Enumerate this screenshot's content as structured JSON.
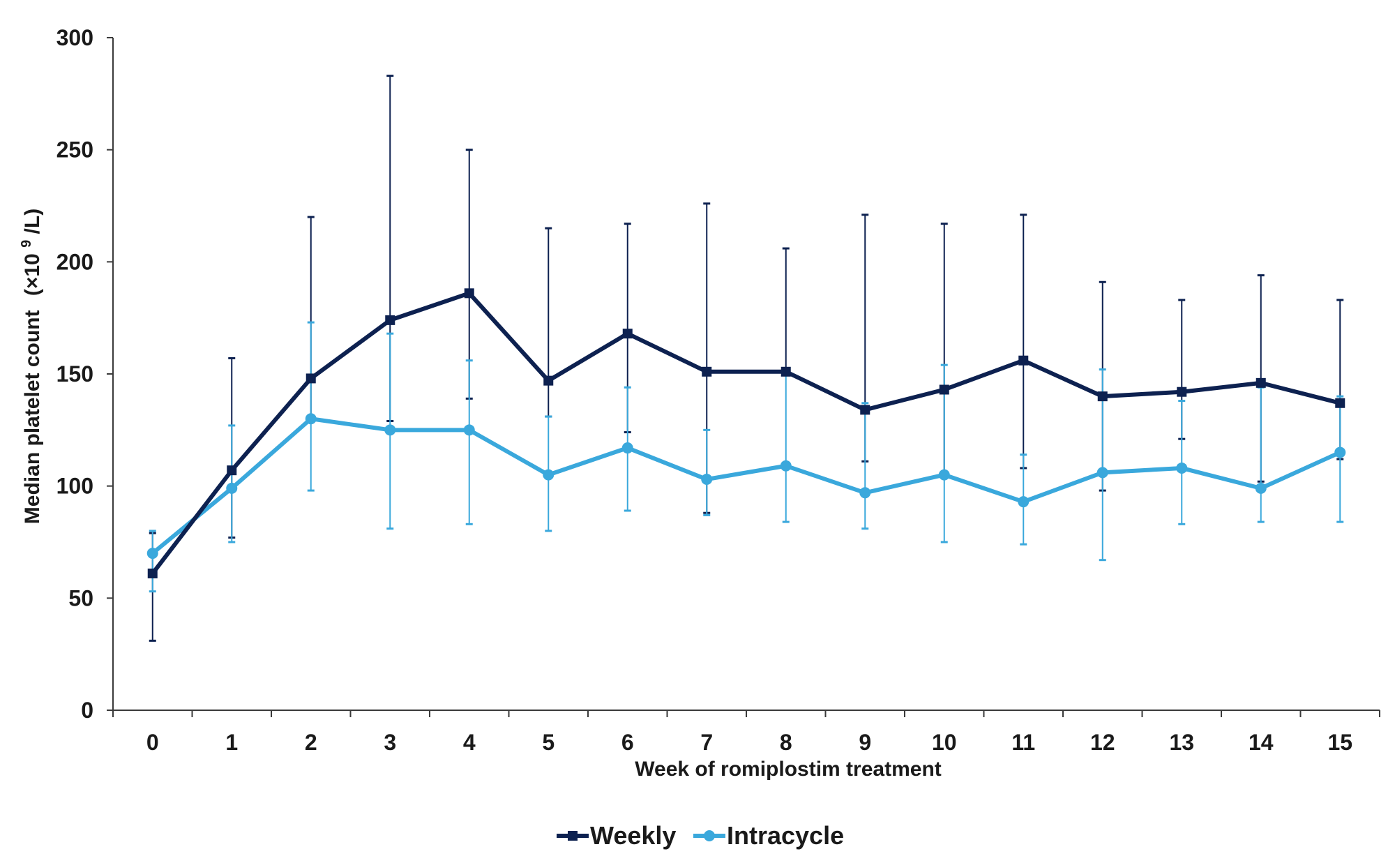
{
  "chart_data": {
    "type": "line",
    "title": "",
    "xlabel": "Week of romiplostim treatment",
    "ylabel": "Median platelet count",
    "ylabel_unit_prefix": "(×10",
    "ylabel_unit_exp": "9",
    "ylabel_unit_suffix": "/L)",
    "x": [
      0,
      1,
      2,
      3,
      4,
      5,
      6,
      7,
      8,
      9,
      10,
      11,
      12,
      13,
      14,
      15
    ],
    "xlim": [
      -0.5,
      15.5
    ],
    "ylim": [
      0,
      300
    ],
    "yticks": [
      0,
      50,
      100,
      150,
      200,
      250,
      300
    ],
    "grid": false,
    "legend_position": "bottom-center",
    "series": [
      {
        "name": "Weekly",
        "color": "#0d2150",
        "marker": "square",
        "values": [
          61,
          107,
          148,
          174,
          186,
          147,
          168,
          151,
          151,
          134,
          143,
          156,
          140,
          142,
          146,
          137
        ],
        "err_low": [
          31,
          77,
          130,
          129,
          139,
          131,
          124,
          88,
          150,
          111,
          105,
          108,
          98,
          121,
          102,
          112
        ],
        "err_high": [
          79,
          157,
          220,
          283,
          250,
          215,
          217,
          226,
          206,
          221,
          217,
          221,
          191,
          183,
          194,
          183
        ]
      },
      {
        "name": "Intracycle",
        "color": "#3aa8dc",
        "marker": "circle",
        "values": [
          70,
          99,
          130,
          125,
          125,
          105,
          117,
          103,
          109,
          97,
          105,
          93,
          106,
          108,
          99,
          115
        ],
        "err_low": [
          53,
          75,
          98,
          81,
          83,
          80,
          89,
          87,
          84,
          81,
          75,
          74,
          67,
          83,
          84,
          84
        ],
        "err_high": [
          80,
          127,
          173,
          168,
          156,
          131,
          144,
          125,
          150,
          137,
          154,
          114,
          152,
          138,
          144,
          140
        ]
      }
    ]
  }
}
